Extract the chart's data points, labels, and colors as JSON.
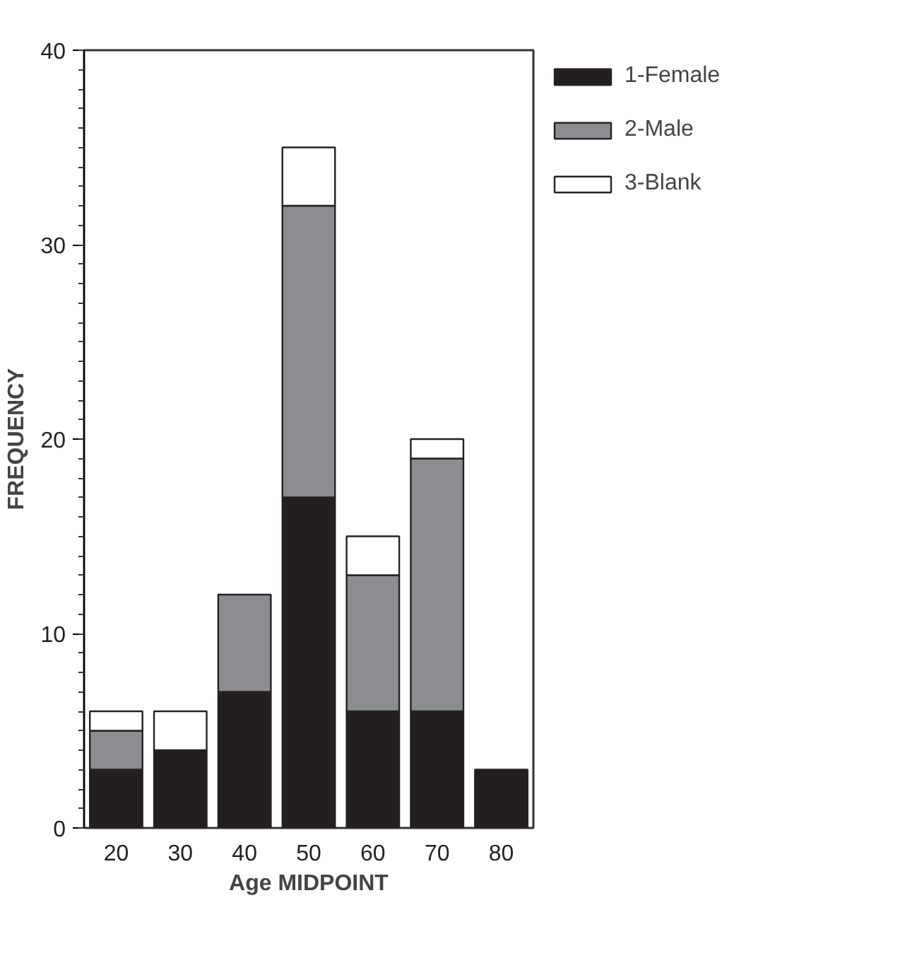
{
  "chart_data": {
    "type": "bar",
    "stacked": true,
    "xlabel": "Age MIDPOINT",
    "ylabel": "FREQUENCY",
    "categories": [
      "20",
      "30",
      "40",
      "50",
      "60",
      "70",
      "80"
    ],
    "series": [
      {
        "name": "1-Female",
        "color": "#231f20",
        "values": [
          3,
          4,
          7,
          17,
          6,
          6,
          3
        ]
      },
      {
        "name": "2-Male",
        "color": "#8c8d90",
        "values": [
          2,
          0,
          5,
          15,
          7,
          13,
          0
        ]
      },
      {
        "name": "3-Blank",
        "color": "#ffffff",
        "values": [
          1,
          2,
          0,
          3,
          2,
          1,
          0
        ]
      }
    ],
    "ylim": [
      0,
      40
    ],
    "yticks": [
      0,
      10,
      20,
      30,
      40
    ],
    "grid": false,
    "legend": "top right"
  }
}
